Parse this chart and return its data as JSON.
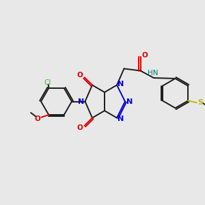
{
  "background_color": "#e8e8e8",
  "bond_color": "#1a1a1a",
  "n_color": "#0000dd",
  "o_color": "#dd0000",
  "cl_color": "#22cc00",
  "s_color": "#bbbb00",
  "hn_color": "#007777",
  "figsize": [
    3.0,
    3.0
  ],
  "dpi": 100,
  "xlim": [
    0,
    10
  ],
  "ylim": [
    0,
    10
  ]
}
